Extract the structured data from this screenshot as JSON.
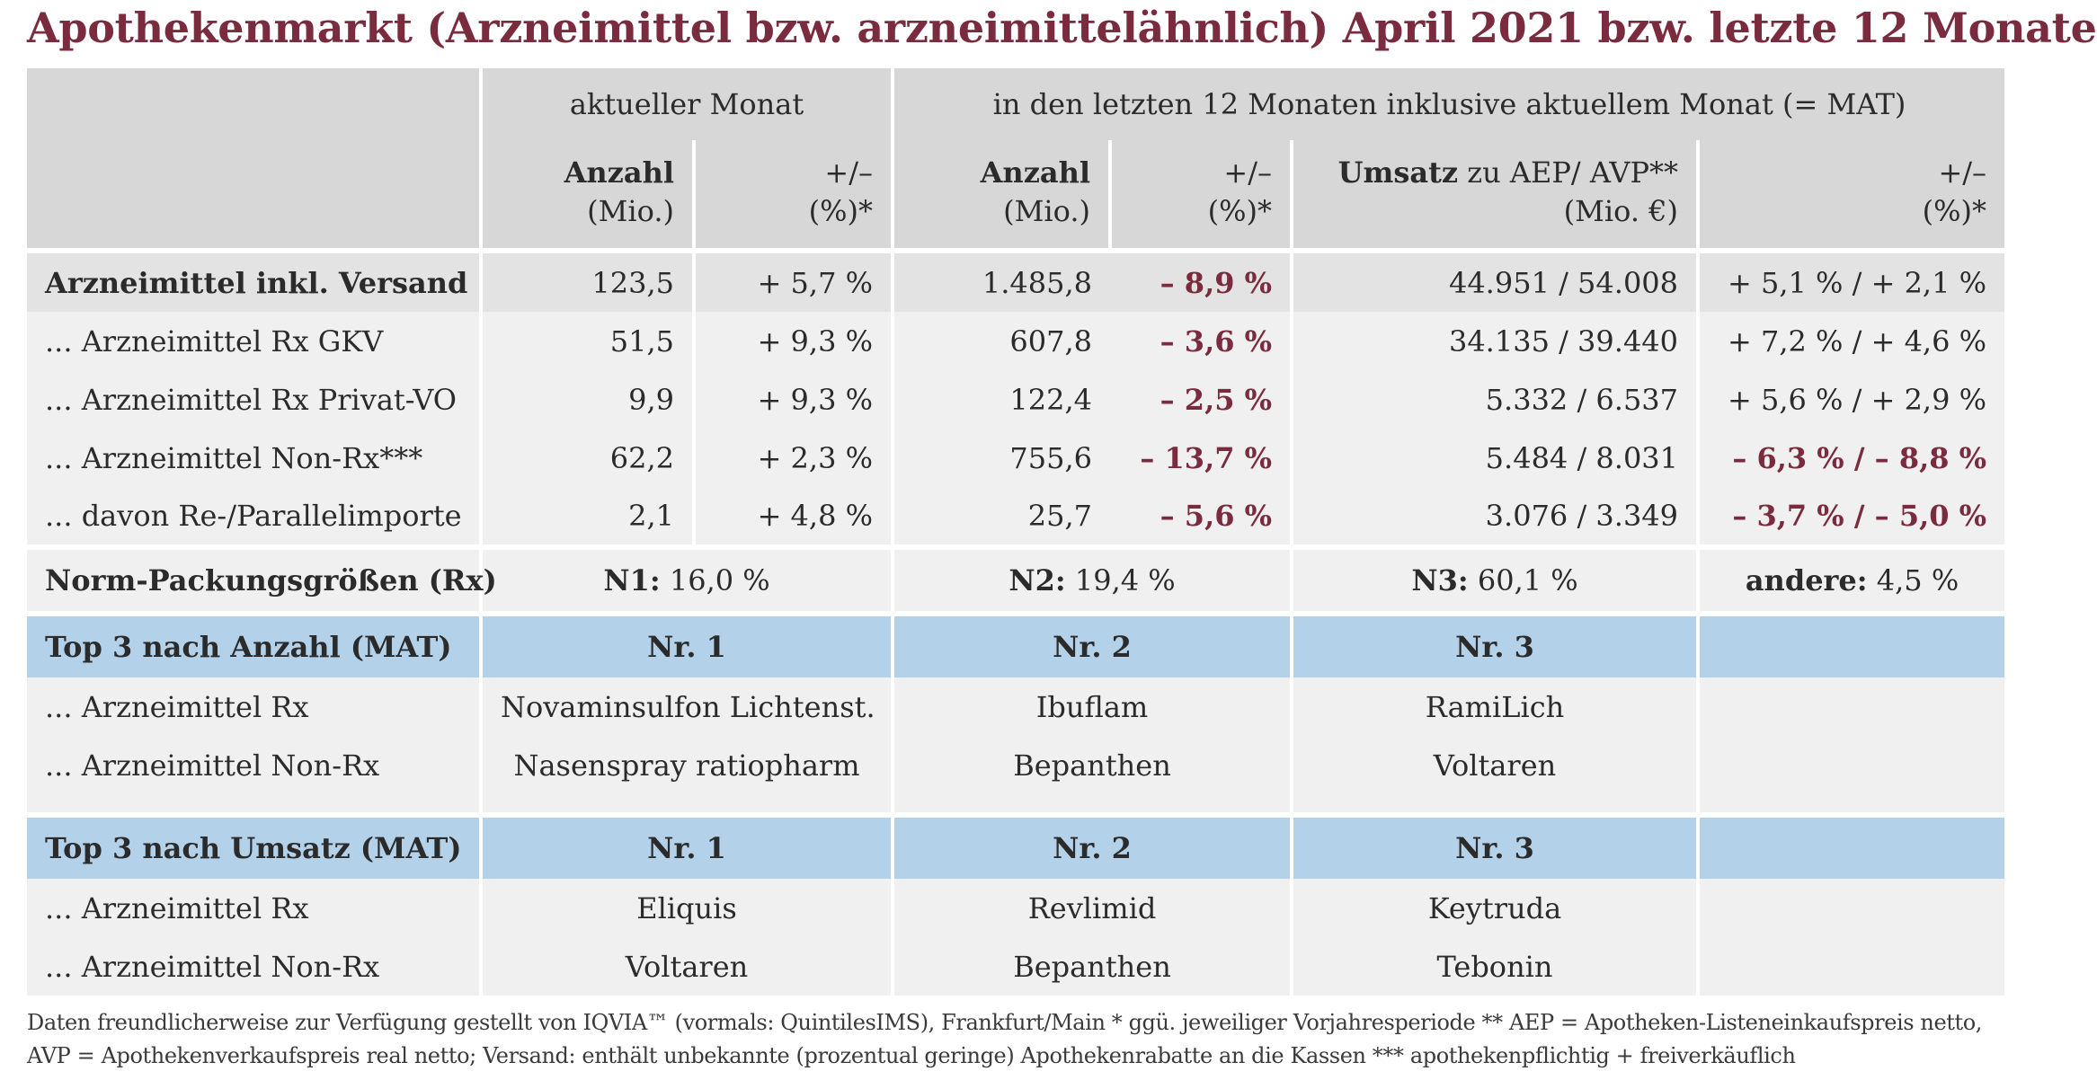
{
  "title": "Apothekenmarkt (Arzneimittel bzw. arzneimittelähnlich) April 2021 bzw. letzte 12 Monate",
  "header": {
    "group_current": "aktueller Monat",
    "group_mat": "in den letzten 12 Monaten inklusive aktuellem Monat (= MAT)",
    "anzahl_1": "Anzahl",
    "anzahl_2": "(Mio.)",
    "pm_1": "+/–",
    "pm_2": "(%)*",
    "umsatz_bold": "Umsatz",
    "umsatz_rest": " zu AEP/ AVP**",
    "umsatz_unit": "(Mio. €)"
  },
  "rows": [
    {
      "label": "Arzneimittel inkl. Versand",
      "anzahl": "123,5",
      "pct": "+ 5,7 %",
      "mat_anzahl": "1.485,8",
      "mat_pct": "– 8,9 %",
      "umsatz": "44.951 / 54.008",
      "umsatz_pct": "+ 5,1 % / + 2,1 %"
    },
    {
      "label": "... Arzneimittel Rx GKV",
      "anzahl": "51,5",
      "pct": "+ 9,3 %",
      "mat_anzahl": "607,8",
      "mat_pct": "– 3,6 %",
      "umsatz": "34.135 / 39.440",
      "umsatz_pct": "+ 7,2 % / + 4,6 %"
    },
    {
      "label": "... Arzneimittel Rx Privat-VO",
      "anzahl": "9,9",
      "pct": "+ 9,3 %",
      "mat_anzahl": "122,4",
      "mat_pct": "– 2,5 %",
      "umsatz": "5.332 / 6.537",
      "umsatz_pct": "+ 5,6 % / + 2,9 %"
    },
    {
      "label": "... Arzneimittel Non-Rx***",
      "anzahl": "62,2",
      "pct": "+ 2,3 %",
      "mat_anzahl": "755,6",
      "mat_pct": "– 13,7 %",
      "umsatz": "5.484 / 8.031",
      "umsatz_pct": "– 6,3 % / – 8,8 %"
    },
    {
      "label": "... davon Re-/Parallelimporte",
      "anzahl": "2,1",
      "pct": "+ 4,8 %",
      "mat_anzahl": "25,7",
      "mat_pct": "– 5,6 %",
      "umsatz": "3.076 / 3.349",
      "umsatz_pct": "– 3,7 % / – 5,0 %"
    }
  ],
  "norm": {
    "label": "Norm-Packungsgrößen (Rx)",
    "items": [
      {
        "key": "N1:",
        "value": " 16,0 %"
      },
      {
        "key": "N2:",
        "value": " 19,4 %"
      },
      {
        "key": "N3:",
        "value": " 60,1 %"
      },
      {
        "key": "andere:",
        "value": " 4,5 %"
      }
    ]
  },
  "top_anzahl": {
    "label": "Top 3 nach Anzahl (MAT)",
    "ranks": [
      "Nr. 1",
      "Nr. 2",
      "Nr. 3"
    ],
    "rows": [
      {
        "label": "... Arzneimittel Rx",
        "items": [
          "Novaminsulfon Lichtenst.",
          "Ibuflam",
          "RamiLich"
        ]
      },
      {
        "label": "... Arzneimittel Non-Rx",
        "items": [
          "Nasenspray ratiopharm",
          "Bepanthen",
          "Voltaren"
        ]
      }
    ]
  },
  "top_umsatz": {
    "label": "Top 3 nach Umsatz (MAT)",
    "ranks": [
      "Nr. 1",
      "Nr. 2",
      "Nr. 3"
    ],
    "rows": [
      {
        "label": "... Arzneimittel Rx",
        "items": [
          "Eliquis",
          "Revlimid",
          "Keytruda"
        ]
      },
      {
        "label": "... Arzneimittel Non-Rx",
        "items": [
          "Voltaren",
          "Bepanthen",
          "Tebonin"
        ]
      }
    ]
  },
  "footer": {
    "line1": "Daten freundlicherweise zur Verfügung gestellt von IQVIA™ (vormals: QuintilesIMS), Frankfurt/Main  * ggü. jeweiliger Vorjahresperiode  ** AEP = Apotheken-Listeneinkaufspreis netto,",
    "line2": "AVP = Apothekenverkaufspreis real netto; Versand: enthält unbekannte (prozentual geringe) Apothekenrabatte an die Kassen    *** apothekenpflichtig + freiverkäuflich"
  }
}
